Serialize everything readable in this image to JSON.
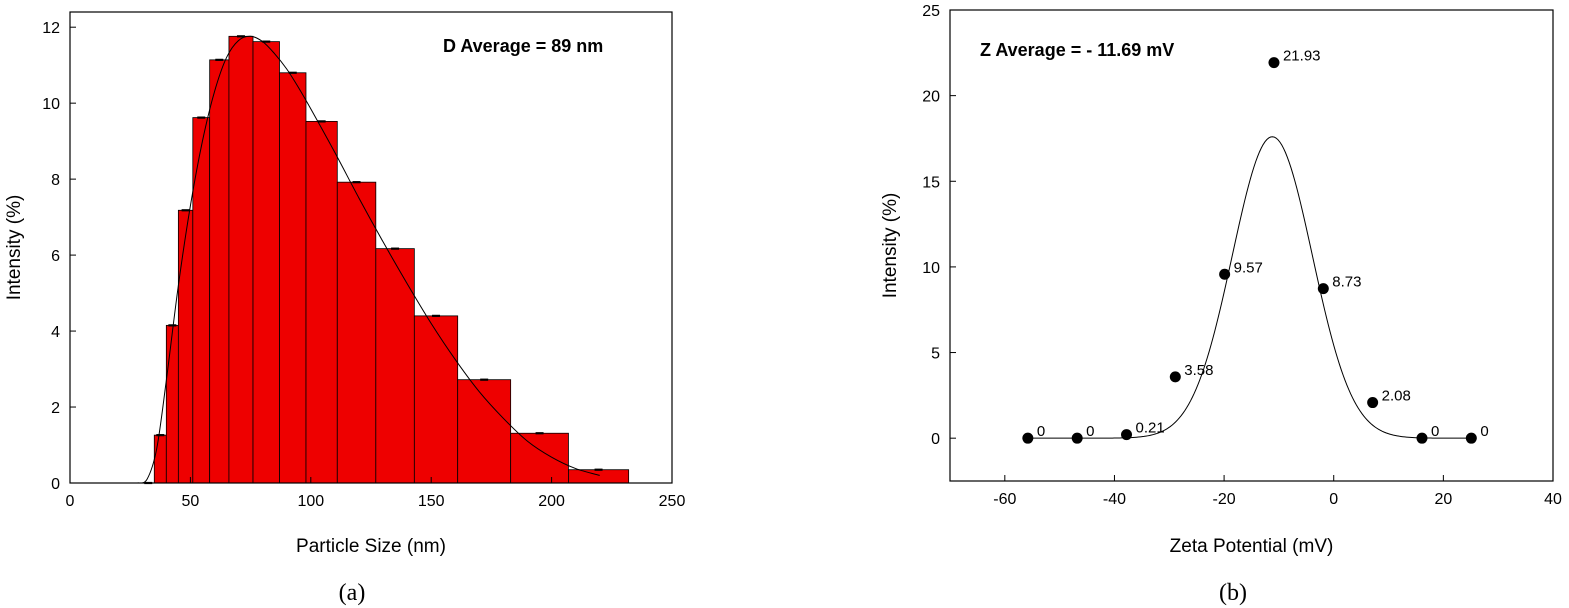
{
  "chart_data": [
    {
      "type": "bar",
      "panel_caption": "(a)",
      "xlabel": "Particle Size (nm)",
      "ylabel": "Intensity (%)",
      "annotation": "D Average = 89 nm",
      "xlim": [
        0,
        250
      ],
      "ylim": [
        0,
        12.4
      ],
      "xticks": [
        "0",
        "50",
        "100",
        "150",
        "200",
        "250"
      ],
      "yticks": [
        "0",
        "2",
        "4",
        "6",
        "8",
        "10",
        "12"
      ],
      "xtick_values": [
        0,
        50,
        100,
        150,
        200,
        250
      ],
      "ytick_values": [
        0,
        2,
        4,
        6,
        8,
        10,
        12
      ],
      "bar_color": "#ee0000",
      "grid": false,
      "bars": [
        {
          "x0": 30,
          "x1": 35,
          "y": 0.0
        },
        {
          "x0": 35,
          "x1": 40,
          "y": 1.26
        },
        {
          "x0": 40,
          "x1": 45,
          "y": 4.15
        },
        {
          "x0": 45,
          "x1": 51,
          "y": 7.18
        },
        {
          "x0": 51,
          "x1": 58,
          "y": 9.62
        },
        {
          "x0": 58,
          "x1": 66,
          "y": 11.14
        },
        {
          "x0": 66,
          "x1": 76,
          "y": 11.76
        },
        {
          "x0": 76,
          "x1": 87,
          "y": 11.62
        },
        {
          "x0": 87,
          "x1": 98,
          "y": 10.8
        },
        {
          "x0": 98,
          "x1": 111,
          "y": 9.52
        },
        {
          "x0": 111,
          "x1": 127,
          "y": 7.92
        },
        {
          "x0": 127,
          "x1": 143,
          "y": 6.17
        },
        {
          "x0": 143,
          "x1": 161,
          "y": 4.4
        },
        {
          "x0": 161,
          "x1": 183,
          "y": 2.72
        },
        {
          "x0": 183,
          "x1": 207,
          "y": 1.31
        },
        {
          "x0": 207,
          "x1": 232,
          "y": 0.35
        }
      ],
      "fit_curve": {
        "x": [
          28,
          32,
          36,
          40,
          45,
          50,
          55,
          60,
          65,
          70,
          75,
          80,
          85,
          90,
          95,
          100,
          110,
          120,
          130,
          140,
          150,
          160,
          170,
          180,
          190,
          200,
          210,
          220
        ],
        "y": [
          0.0,
          0.1,
          0.9,
          2.7,
          5.2,
          7.3,
          9.0,
          10.3,
          11.2,
          11.65,
          11.76,
          11.62,
          11.3,
          10.9,
          10.4,
          9.85,
          8.7,
          7.5,
          6.35,
          5.25,
          4.2,
          3.25,
          2.4,
          1.7,
          1.1,
          0.68,
          0.38,
          0.2
        ]
      }
    },
    {
      "type": "scatter",
      "panel_caption": "(b)",
      "xlabel": "Zeta Potential (mV)",
      "ylabel": "Intensity (%)",
      "annotation": "Z Average = - 11.69 mV",
      "xlim": [
        -70,
        40
      ],
      "ylim": [
        -2.5,
        25
      ],
      "xticks": [
        "-60",
        "-40",
        "-20",
        "0",
        "20",
        "40"
      ],
      "yticks": [
        "0",
        "5",
        "10",
        "15",
        "20",
        "25"
      ],
      "xtick_values": [
        -60,
        -40,
        -20,
        0,
        20,
        40
      ],
      "ytick_values": [
        0,
        5,
        10,
        15,
        20,
        25
      ],
      "grid": false,
      "points": [
        {
          "x": -55.8,
          "y": 0,
          "label": "0"
        },
        {
          "x": -46.8,
          "y": 0,
          "label": "0"
        },
        {
          "x": -37.8,
          "y": 0.21,
          "label": "0.21"
        },
        {
          "x": -28.9,
          "y": 3.58,
          "label": "3.58"
        },
        {
          "x": -19.9,
          "y": 9.57,
          "label": "9.57"
        },
        {
          "x": -10.9,
          "y": 21.93,
          "label": "21.93"
        },
        {
          "x": -1.9,
          "y": 8.73,
          "label": "8.73"
        },
        {
          "x": 7.1,
          "y": 2.08,
          "label": "2.08"
        },
        {
          "x": 16.1,
          "y": 0,
          "label": "0"
        },
        {
          "x": 25.1,
          "y": 0,
          "label": "0"
        }
      ],
      "fit_curve": {
        "type": "gaussian",
        "amplitude": 17.6,
        "center": -11.2,
        "sigma": 7.3
      }
    }
  ]
}
